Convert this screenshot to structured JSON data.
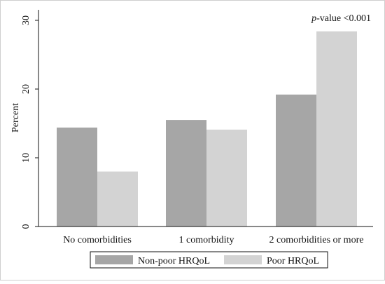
{
  "chart_data": {
    "type": "bar",
    "ylabel": "Percent",
    "annotation": {
      "italic": "p",
      "rest": "-value <0.001"
    },
    "ylim": [
      0,
      30
    ],
    "yticks": [
      0,
      10,
      20,
      30
    ],
    "categories": [
      "No comorbidities",
      "1 comorbidity",
      "2 comorbidities or more"
    ],
    "series": [
      {
        "name": "Non-poor HRQoL",
        "color": "#a6a6a6",
        "values": [
          14.4,
          15.5,
          19.2
        ]
      },
      {
        "name": "Poor HRQoL",
        "color": "#d3d3d3",
        "values": [
          8.0,
          14.1,
          28.4
        ]
      }
    ],
    "legend_position": "bottom",
    "grid": false
  }
}
